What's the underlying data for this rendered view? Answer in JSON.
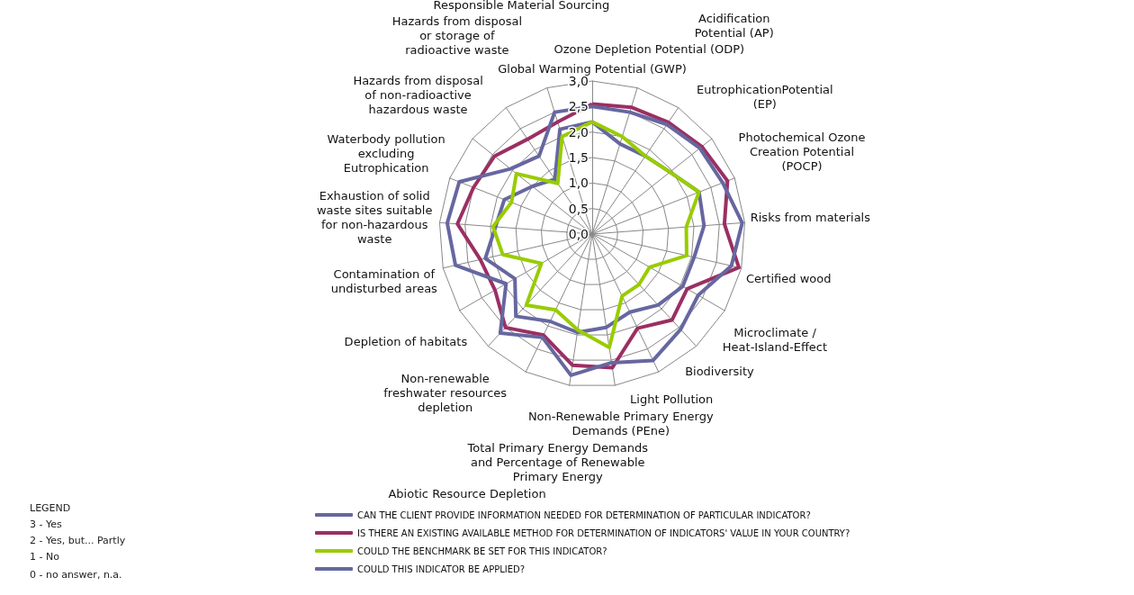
{
  "chart_data": {
    "type": "radar",
    "categories": [
      "Global Warming Potential (GWP)",
      "Ozone Depletion Potential (ODP)",
      "Acidification Potential (AP)",
      "EutrophicationPotential (EP)",
      "Photochemical Ozone Creation Potential (POCP)",
      "Risks from materials",
      "Certified wood",
      "Microclimate / Heat-Island-Effect",
      "Biodiversity",
      "Light Pollution",
      "Non-Renewable Primary Energy Demands (PEne)",
      "Total Primary Energy Demands and Percentage of Renewable Primary Energy",
      "Abiotic Resource Depletion",
      "Non-renewable freshwater resources depletion",
      "Depletion of habitats",
      "Contamination of undisturbed areas",
      "Exhaustion of solid waste sites suitable for non-hazardous waste",
      "Waterbody pollution excluding Eutrophication",
      "Hazards from disposal of non-radioactive hazardous waste",
      "Hazards from disposal or storage of radioactive waste",
      "Responsible Material Sourcing"
    ],
    "series": [
      {
        "name": "CAN THE CLIENT PROVIDE INFORMATION NEEDED FOR DETERMINATION OF PARTICULAR INDICATOR?",
        "color": "#6667a0",
        "values": [
          2.2,
          1.85,
          1.85,
          1.95,
          2.25,
          2.2,
          2.05,
          2.05,
          1.9,
          1.7,
          1.85,
          1.95,
          1.9,
          2.2,
          1.75,
          2.15,
          1.9,
          1.85,
          1.5,
          1.3,
          2.15
        ]
      },
      {
        "name": "IS THERE AN EXISTING AVAILABLE METHOD FOR DETERMINATION OF INDICATORS' VALUE IN YOUR COUNTRY?",
        "color": "#9b2f63",
        "values": [
          2.55,
          2.6,
          2.65,
          2.75,
          2.85,
          2.6,
          2.95,
          2.15,
          2.3,
          2.05,
          2.65,
          2.6,
          2.2,
          2.5,
          2.2,
          2.25,
          2.65,
          2.5,
          2.45,
          2.25,
          2.3
        ]
      },
      {
        "name": "COULD THE BENCHMARK BE SET FOR THIS INDICATOR?",
        "color": "#99cc00",
        "values": [
          2.2,
          2.0,
          1.85,
          1.95,
          2.25,
          1.85,
          1.9,
          1.3,
          1.35,
          1.35,
          2.25,
          1.9,
          1.65,
          1.9,
          1.15,
          1.8,
          1.95,
          1.7,
          1.9,
          1.2,
          2.0
        ]
      },
      {
        "name": "COULD THIS INDICATOR BE APPLIED?",
        "color": "#6667a0",
        "values": [
          2.5,
          2.5,
          2.6,
          2.7,
          2.75,
          2.95,
          2.8,
          2.4,
          2.55,
          2.75,
          2.55,
          2.8,
          2.25,
          2.65,
          1.95,
          2.75,
          2.85,
          2.8,
          2.05,
          1.85,
          2.5
        ]
      }
    ],
    "ylim": [
      0,
      3
    ],
    "yticks": [
      {
        "value": 0,
        "label": "0,0"
      },
      {
        "value": 0.5,
        "label": "0,5"
      },
      {
        "value": 1,
        "label": "1,0"
      },
      {
        "value": 1.5,
        "label": "1,5"
      },
      {
        "value": 2,
        "label": "2,0"
      },
      {
        "value": 2.5,
        "label": "2,5"
      },
      {
        "value": 3,
        "label": "3,0"
      }
    ],
    "legend": "bottom",
    "marker": "none",
    "annotations": [
      "LEGEND",
      "3 - Yes",
      "2 - Yes, but... Partly",
      "1 - No",
      "0 - no answer, n.a."
    ]
  }
}
